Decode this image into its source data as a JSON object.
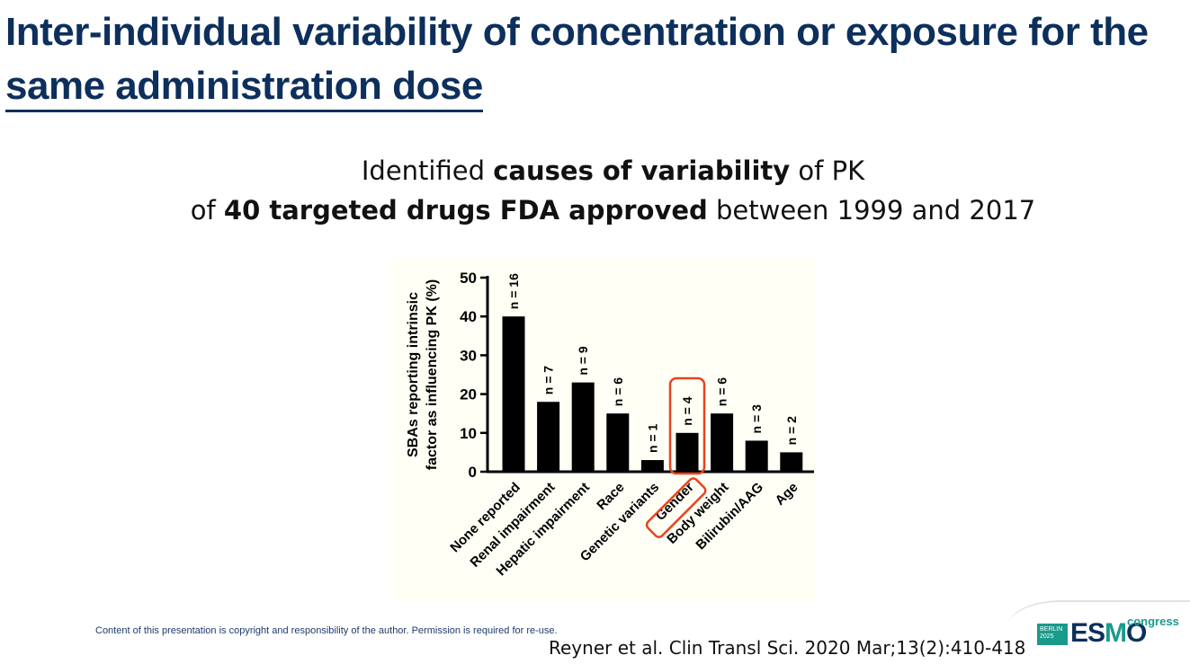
{
  "title": {
    "line1": "Inter-individual variability of concentration or exposure for the",
    "line2": "same administration dose"
  },
  "subtitle": {
    "line1_pre": "Identified ",
    "line1_bold": "causes of variability",
    "line1_post": " of PK",
    "line2_pre": "of ",
    "line2_bold": "40 targeted drugs FDA approved",
    "line2_post": " between 1999 and 2017"
  },
  "chart_data": {
    "type": "bar",
    "ylabel_line1": "SBAs reporting intrinsic",
    "ylabel_line2": "factor as influencing PK (%)",
    "ylim": [
      0,
      50
    ],
    "yticks": [
      "0",
      "10",
      "20",
      "30",
      "40",
      "50"
    ],
    "categories": [
      "None reported",
      "Renal impairment",
      "Hepatic impairment",
      "Race",
      "Genetic variants",
      "Gender",
      "Body weight",
      "Bilirubin/AAG",
      "Age"
    ],
    "values": [
      40,
      18,
      23,
      15,
      3,
      10,
      15,
      8,
      5
    ],
    "labels": [
      "n = 16",
      "n = 7",
      "n = 9",
      "n = 6",
      "n = 1",
      "n = 4",
      "n = 6",
      "n = 3",
      "n = 2"
    ],
    "highlight": "Gender",
    "highlight_color": "#e8431f",
    "bar_color": "#000000"
  },
  "footer": {
    "copyright": "Content of this presentation is copyright and responsibility of the author. Permission is required for re-use.",
    "reference": "Reyner et al. Clin Transl Sci. 2020 Mar;13(2):410-418"
  },
  "logo": {
    "badge_line1": "BERLIN",
    "badge_line2": "2025",
    "esmo_e": "ES",
    "esmo_m": "M",
    "esmo_o": "O",
    "congress": "congress"
  }
}
